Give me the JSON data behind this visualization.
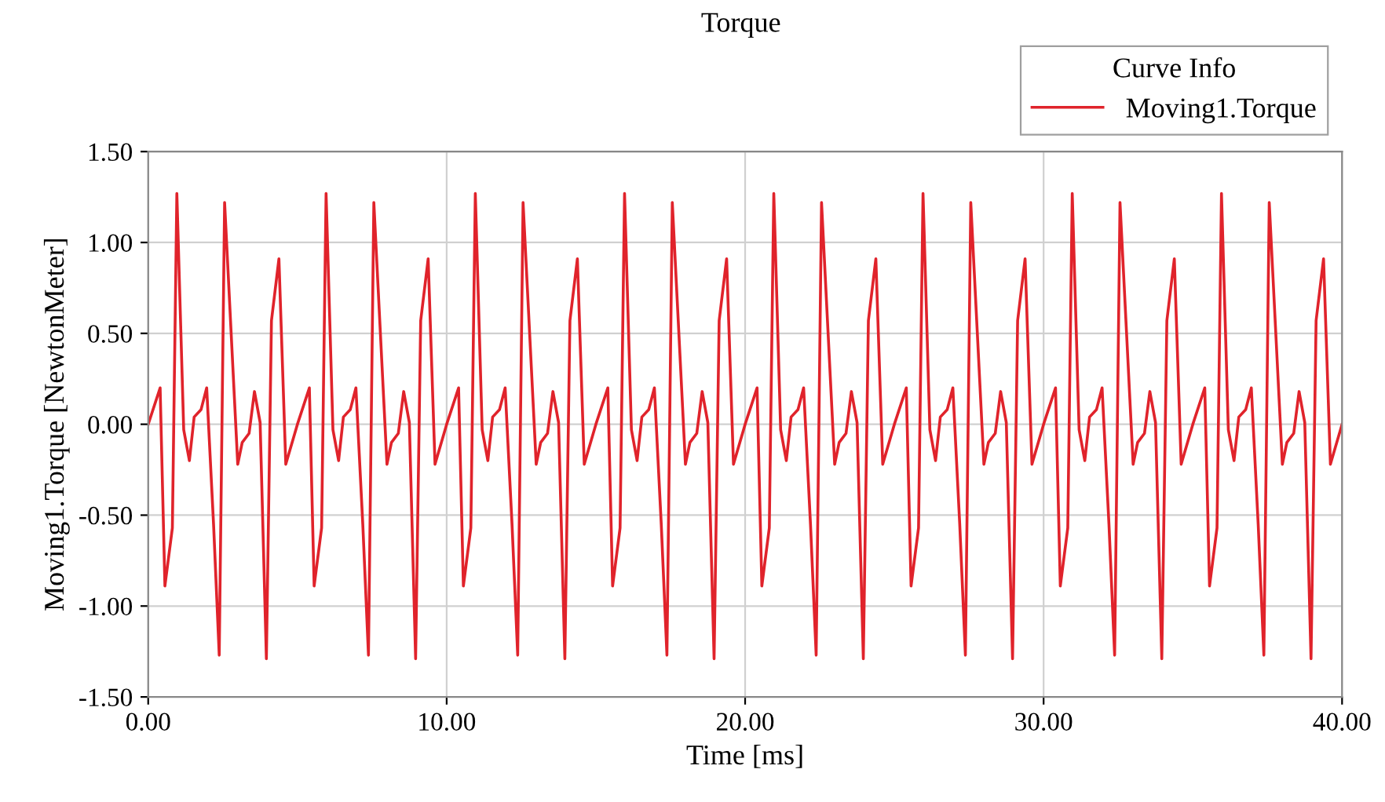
{
  "chart_data": {
    "type": "line",
    "title": "Torque",
    "xlabel": "Time [ms]",
    "ylabel": "Moving1.Torque [NewtonMeter]",
    "legend_title": "Curve Info",
    "legend": "top right",
    "grid": true,
    "marker": "none",
    "line_style": "solid",
    "xlim": [
      0,
      40
    ],
    "xticks": [
      {
        "value": 0,
        "label": "0.00"
      },
      {
        "value": 10,
        "label": "10.00"
      },
      {
        "value": 20,
        "label": "20.00"
      },
      {
        "value": 30,
        "label": "30.00"
      },
      {
        "value": 40,
        "label": "40.00"
      }
    ],
    "ylim": [
      -1.5,
      1.5
    ],
    "yticks": [
      {
        "value": -1.5,
        "label": "-1.50"
      },
      {
        "value": -1.0,
        "label": "-1.00"
      },
      {
        "value": -0.5,
        "label": "-0.50"
      },
      {
        "value": 0,
        "label": "0.00"
      },
      {
        "value": 0.5,
        "label": "0.50"
      },
      {
        "value": 1.0,
        "label": "1.00"
      },
      {
        "value": 1.5,
        "label": "1.50"
      }
    ],
    "series": [
      {
        "name": "Moving1.Torque",
        "color": "#e0232b",
        "x": [
          0.0,
          0.4,
          0.56,
          0.81,
          0.96,
          1.19,
          1.38,
          1.54,
          1.77,
          1.96,
          2.19,
          2.38,
          2.56,
          3.0,
          3.15,
          3.38,
          3.56,
          3.75,
          3.96,
          4.13,
          4.38,
          4.61,
          5.0,
          5.4,
          5.56,
          5.81,
          5.96,
          6.19,
          6.38,
          6.54,
          6.77,
          6.96,
          7.19,
          7.38,
          7.56,
          8.0,
          8.15,
          8.38,
          8.56,
          8.75,
          8.96,
          9.13,
          9.38,
          9.61,
          10.0,
          10.4,
          10.56,
          10.81,
          10.96,
          11.19,
          11.38,
          11.54,
          11.77,
          11.96,
          12.19,
          12.38,
          12.56,
          13.0,
          13.15,
          13.38,
          13.56,
          13.75,
          13.96,
          14.13,
          14.38,
          14.61,
          15.0,
          15.4,
          15.56,
          15.81,
          15.96,
          16.19,
          16.38,
          16.54,
          16.77,
          16.96,
          17.19,
          17.38,
          17.56,
          18.0,
          18.15,
          18.38,
          18.56,
          18.75,
          18.96,
          19.13,
          19.38,
          19.61,
          20.0,
          20.4,
          20.56,
          20.81,
          20.96,
          21.19,
          21.38,
          21.54,
          21.77,
          21.96,
          22.19,
          22.38,
          22.56,
          23.0,
          23.15,
          23.38,
          23.56,
          23.75,
          23.96,
          24.13,
          24.38,
          24.61,
          25.0,
          25.4,
          25.56,
          25.81,
          25.96,
          26.19,
          26.38,
          26.54,
          26.77,
          26.96,
          27.19,
          27.38,
          27.56,
          28.0,
          28.15,
          28.38,
          28.56,
          28.75,
          28.96,
          29.13,
          29.38,
          29.61,
          30.0,
          30.4,
          30.56,
          30.81,
          30.96,
          31.19,
          31.38,
          31.54,
          31.77,
          31.96,
          32.19,
          32.38,
          32.56,
          33.0,
          33.15,
          33.38,
          33.56,
          33.75,
          33.96,
          34.13,
          34.38,
          34.61,
          35.0,
          35.4,
          35.56,
          35.81,
          35.96,
          36.19,
          36.38,
          36.54,
          36.77,
          36.96,
          37.19,
          37.38,
          37.56,
          38.0,
          38.15,
          38.38,
          38.56,
          38.75,
          38.96,
          39.13,
          39.38,
          39.61,
          40.0
        ],
        "values": [
          0,
          0.2,
          -0.89,
          -0.57,
          1.27,
          -0.03,
          -0.2,
          0.04,
          0.08,
          0.2,
          -0.55,
          -1.27,
          1.22,
          -0.22,
          -0.1,
          -0.05,
          0.18,
          0.01,
          -1.29,
          0.57,
          0.91,
          -0.22,
          0,
          0.2,
          -0.89,
          -0.57,
          1.27,
          -0.03,
          -0.2,
          0.04,
          0.08,
          0.2,
          -0.55,
          -1.27,
          1.22,
          -0.22,
          -0.1,
          -0.05,
          0.18,
          0.01,
          -1.29,
          0.57,
          0.91,
          -0.22,
          0,
          0.2,
          -0.89,
          -0.57,
          1.27,
          -0.03,
          -0.2,
          0.04,
          0.08,
          0.2,
          -0.55,
          -1.27,
          1.22,
          -0.22,
          -0.1,
          -0.05,
          0.18,
          0.01,
          -1.29,
          0.57,
          0.91,
          -0.22,
          0,
          0.2,
          -0.89,
          -0.57,
          1.27,
          -0.03,
          -0.2,
          0.04,
          0.08,
          0.2,
          -0.55,
          -1.27,
          1.22,
          -0.22,
          -0.1,
          -0.05,
          0.18,
          0.01,
          -1.29,
          0.57,
          0.91,
          -0.22,
          0,
          0.2,
          -0.89,
          -0.57,
          1.27,
          -0.03,
          -0.2,
          0.04,
          0.08,
          0.2,
          -0.55,
          -1.27,
          1.22,
          -0.22,
          -0.1,
          -0.05,
          0.18,
          0.01,
          -1.29,
          0.57,
          0.91,
          -0.22,
          0,
          0.2,
          -0.89,
          -0.57,
          1.27,
          -0.03,
          -0.2,
          0.04,
          0.08,
          0.2,
          -0.55,
          -1.27,
          1.22,
          -0.22,
          -0.1,
          -0.05,
          0.18,
          0.01,
          -1.29,
          0.57,
          0.91,
          -0.22,
          0,
          0.2,
          -0.89,
          -0.57,
          1.27,
          -0.03,
          -0.2,
          0.04,
          0.08,
          0.2,
          -0.55,
          -1.27,
          1.22,
          -0.22,
          -0.1,
          -0.05,
          0.18,
          0.01,
          -1.29,
          0.57,
          0.91,
          -0.22,
          0,
          0.2,
          -0.89,
          -0.57,
          1.27,
          -0.03,
          -0.2,
          0.04,
          0.08,
          0.2,
          -0.55,
          -1.27,
          1.22,
          -0.22,
          -0.1,
          -0.05,
          0.18,
          0.01,
          -1.29,
          0.57,
          0.91,
          -0.22,
          0
        ]
      }
    ]
  }
}
